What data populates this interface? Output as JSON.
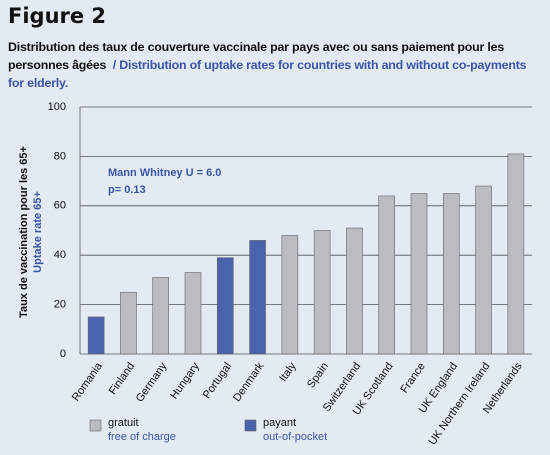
{
  "chart_data": {
    "type": "bar",
    "title": "Figure 2",
    "subtitle_fr": "Distribution des taux de couverture vaccinale par pays avec ou sans paiement pour les personnes âgées",
    "subtitle_sep": "/",
    "subtitle_en": "Distribution of uptake rates for countries with and without co-payments for elderly.",
    "ylabel_fr": "Taux de vaccination pour les 65+",
    "ylabel_en": "Uptake rate 65+",
    "annotations": [
      "Mann Whitney U = 6.0",
      "p= 0.13"
    ],
    "categories": [
      "Romania",
      "Finland",
      "Germany",
      "Hungary",
      "Portugal",
      "Denmark",
      "Italy",
      "Spain",
      "Switzerland",
      "UK Scotland",
      "France",
      "UK England",
      "UK Northern Ireland",
      "Netherlands"
    ],
    "series": [
      {
        "name": "gratuit",
        "name_en": "free of charge",
        "color": "#b9bcc1",
        "values": [
          null,
          25,
          31,
          33,
          null,
          null,
          48,
          50,
          51,
          64,
          65,
          65,
          68,
          81
        ]
      },
      {
        "name": "payant",
        "name_en": "out-of-pocket",
        "color": "#4a63ad",
        "values": [
          15,
          null,
          null,
          null,
          39,
          46,
          null,
          null,
          null,
          null,
          null,
          null,
          null,
          null
        ]
      }
    ],
    "ylim": [
      0,
      100
    ],
    "yticks": [
      0,
      20,
      40,
      60,
      80,
      100
    ],
    "grid": true
  }
}
